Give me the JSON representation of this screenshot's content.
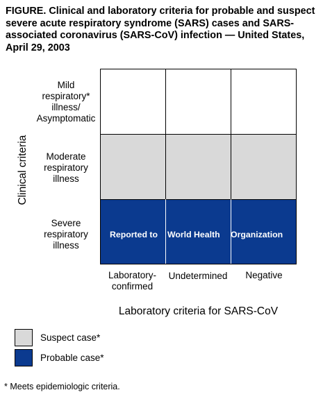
{
  "title": "FIGURE. Clinical and laboratory criteria for probable and suspect severe acute respiratory syndrome (SARS) cases and SARS-associated coronavirus (SARS-CoV) infection — United States, April 29, 2003",
  "y_axis_label": "Clinical criteria",
  "x_axis_label": "Laboratory criteria for SARS-CoV",
  "rows": [
    {
      "lines": [
        "Mild",
        "respiratory*",
        "illness/",
        "Asymptomatic"
      ],
      "fill": "white"
    },
    {
      "lines": [
        "Moderate",
        "respiratory",
        "illness"
      ],
      "fill": "suspect"
    },
    {
      "lines": [
        "Severe",
        "respiratory",
        "illness"
      ],
      "fill": "probable"
    }
  ],
  "columns": [
    {
      "lines": [
        "Laboratory-",
        "confirmed"
      ]
    },
    {
      "lines": [
        "Undetermined"
      ]
    },
    {
      "lines": [
        "Negative"
      ]
    }
  ],
  "banner": [
    "Reported to",
    "World Health",
    "Organization"
  ],
  "legend": [
    {
      "label": "Suspect case*",
      "color": "#d9d9d9"
    },
    {
      "label": "Probable case*",
      "color": "#0b3a8f"
    }
  ],
  "footnote": "* Meets epidemiologic criteria.",
  "colors": {
    "white": "#ffffff",
    "suspect": "#d9d9d9",
    "probable": "#0b3a8f"
  }
}
